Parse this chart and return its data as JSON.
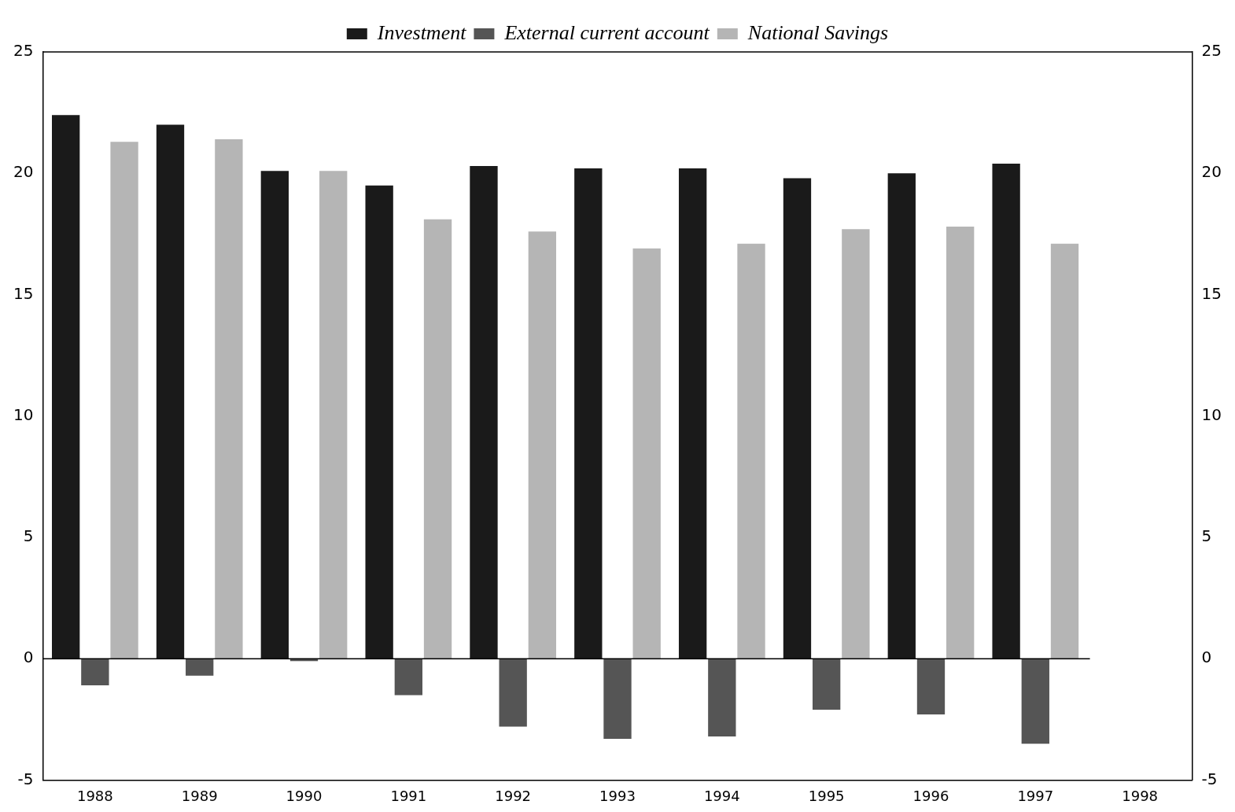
{
  "chart_data": {
    "type": "bar",
    "categories": [
      "1988",
      "1989",
      "1990",
      "1991",
      "1992",
      "1993",
      "1994",
      "1995",
      "1996",
      "1997",
      "1998"
    ],
    "series": [
      {
        "name": "Investment",
        "color": "#1a1a1a",
        "values": [
          22.4,
          22.0,
          20.1,
          19.5,
          20.3,
          20.2,
          20.2,
          19.8,
          20.0,
          20.4,
          null
        ]
      },
      {
        "name": "External current account",
        "color": "#555555",
        "values": [
          -1.1,
          -0.7,
          -0.1,
          -1.5,
          -2.8,
          -3.3,
          -3.2,
          -2.1,
          -2.3,
          -3.5,
          null
        ]
      },
      {
        "name": "National Savings",
        "color": "#b5b5b5",
        "values": [
          21.3,
          21.4,
          20.1,
          18.1,
          17.6,
          16.9,
          17.1,
          17.7,
          17.8,
          17.1,
          null
        ]
      }
    ],
    "ylim": [
      -5,
      25
    ],
    "yticks": [
      -5,
      0,
      5,
      10,
      15,
      20,
      25
    ],
    "y2lim": [
      -5,
      25
    ],
    "y2ticks": [
      -5,
      0,
      5,
      10,
      15,
      20,
      25
    ],
    "ref_lines": [
      {
        "axis": "y",
        "value": 0,
        "color": "#000000"
      }
    ],
    "grid": false,
    "legend": "top"
  }
}
